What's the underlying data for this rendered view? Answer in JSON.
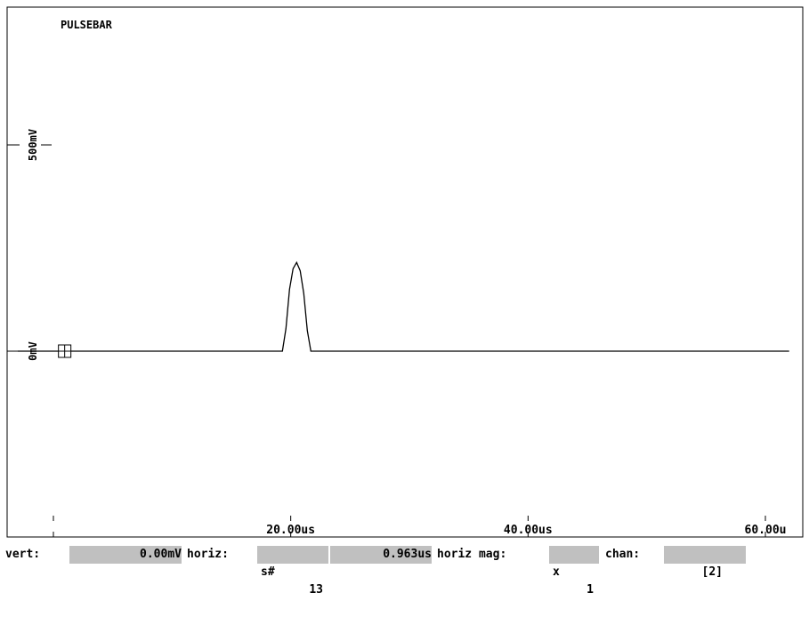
{
  "window": {
    "title": "PULSEBAR"
  },
  "chart_data": {
    "type": "line",
    "title": "PULSEBAR",
    "x_unit": "us",
    "y_unit": "mV",
    "xlim": [
      0,
      62
    ],
    "ylim": [
      -820,
      780
    ],
    "y_ticks": [
      {
        "value": 0,
        "label": "0mV"
      },
      {
        "value": 500,
        "label": "500mV"
      }
    ],
    "x_ticks": [
      {
        "value": 0,
        "label": ""
      },
      {
        "value": 20,
        "label": "20.00us"
      },
      {
        "value": 40,
        "label": "40.00us"
      },
      {
        "value": 60,
        "label": "60.00u"
      }
    ],
    "grid": false,
    "series": [
      {
        "x": [
          -3,
          19.3,
          19.6,
          19.9,
          20.2,
          20.5,
          20.8,
          21.1,
          21.4,
          21.7,
          22.0,
          22.3,
          62
        ],
        "y": [
          0,
          0,
          55,
          150,
          200,
          215,
          195,
          140,
          50,
          0,
          0,
          0,
          0
        ]
      }
    ],
    "marker": {
      "x": 0.5,
      "y": 0
    }
  },
  "status": {
    "vert_label": "vert:",
    "vert_value": "0.00mV",
    "horiz_label": "horiz:",
    "sample_prefix": "s#",
    "sample_value": "13",
    "horiz_value": "0.963us",
    "mag_label": "horiz mag:",
    "mag_prefix": "x",
    "mag_value": "1",
    "chan_label": "chan:",
    "chan_value": "[2]"
  }
}
